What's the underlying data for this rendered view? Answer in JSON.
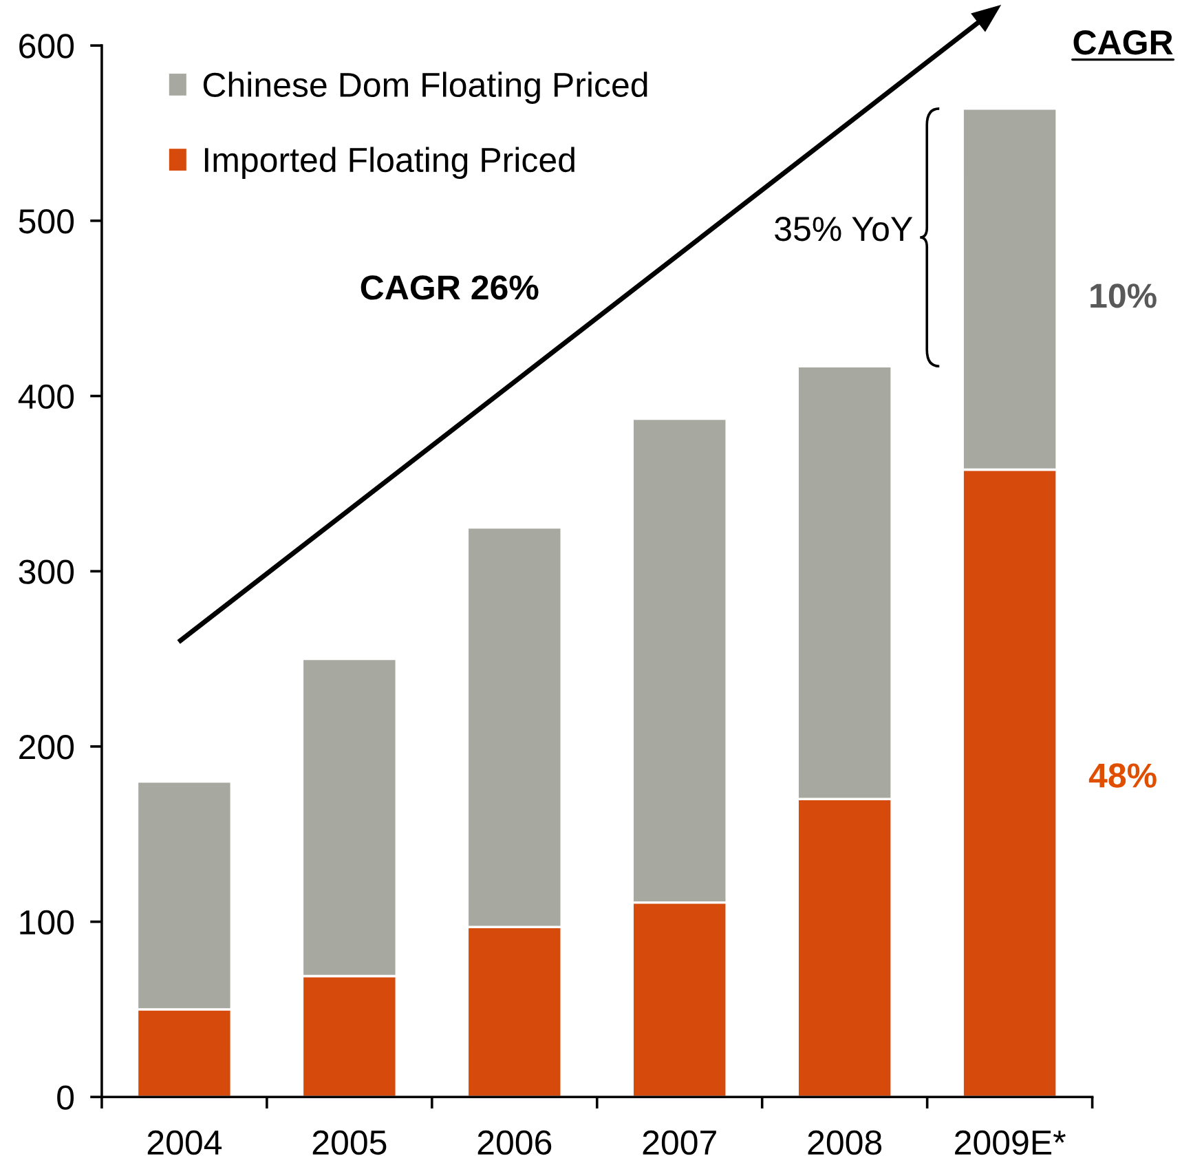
{
  "chart_data": {
    "type": "bar",
    "categories": [
      "2004",
      "2005",
      "2006",
      "2007",
      "2008",
      "2009E*"
    ],
    "series": [
      {
        "name": "Imported Floating Priced",
        "color": "#d64b0c",
        "values": [
          50,
          69,
          97,
          111,
          170,
          358
        ]
      },
      {
        "name": "Chinese Dom Floating Priced",
        "color": "#a7a89f",
        "values": [
          130,
          181,
          228,
          276,
          247,
          206
        ]
      }
    ],
    "stacked": true,
    "ylim": [
      0,
      600
    ],
    "yticks": [
      0,
      100,
      200,
      300,
      400,
      500,
      600
    ],
    "legend": "top left",
    "annotations": [
      "CAGR 26%",
      "35% YoY",
      "CAGR",
      "10%",
      "48%"
    ]
  }
}
